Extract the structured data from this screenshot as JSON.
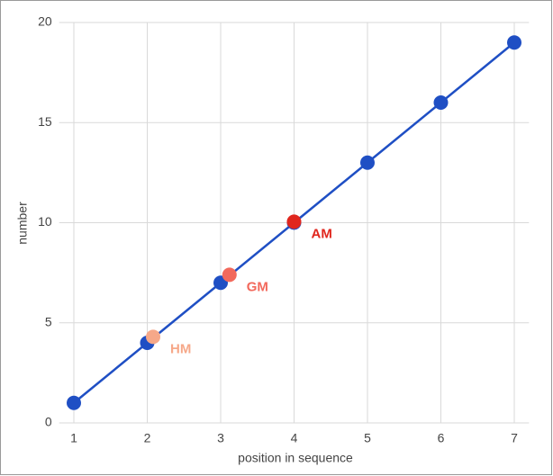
{
  "chart_data": {
    "type": "line",
    "x_label": "position in sequence",
    "y_label": "number",
    "series": [
      {
        "color": "#1f4fc4",
        "x": [
          1,
          2,
          3,
          4,
          5,
          6,
          7
        ],
        "values": [
          1,
          4,
          7,
          10,
          13,
          16,
          19
        ]
      }
    ],
    "points": [
      {
        "label": "HM",
        "x": 2.08,
        "y": 4.3,
        "color": "#f6a889"
      },
      {
        "label": "GM",
        "x": 3.12,
        "y": 7.4,
        "color": "#f2695c"
      },
      {
        "label": "AM",
        "x": 4,
        "y": 10.05,
        "color": "#e0261d"
      }
    ],
    "xlim": [
      0.8,
      7.2
    ],
    "xticks": [
      1,
      2,
      3,
      4,
      5,
      6,
      7
    ],
    "ylim": [
      0,
      20
    ],
    "yticks": [
      0,
      5,
      10,
      15,
      20
    ],
    "grid": true
  }
}
